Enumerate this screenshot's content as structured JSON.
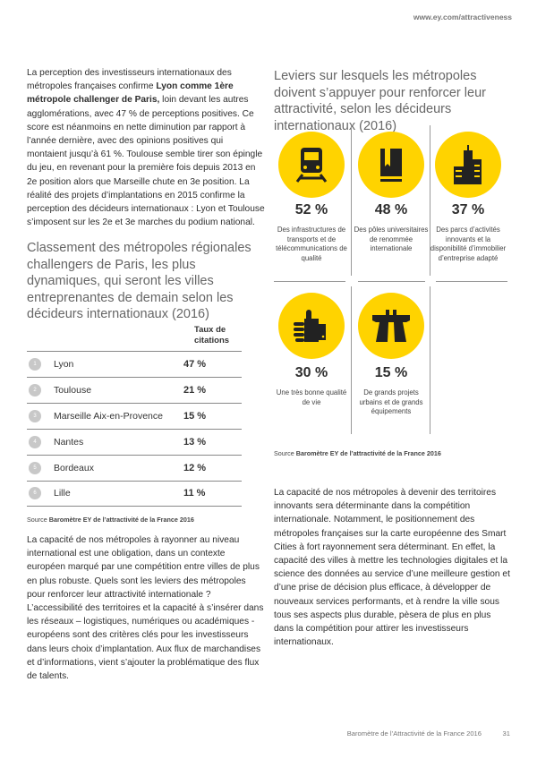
{
  "header": {
    "url": "www.ey.com/attractiveness"
  },
  "intro": {
    "p1a": "La perception des investisseurs internationaux des métropoles françaises confirme ",
    "p1b": "Lyon comme 1ère métropole challenger de Paris,",
    "p1c": " loin devant les autres agglomérations, avec 47 % de perceptions positives. Ce score est néanmoins en nette diminution par rapport à l’année dernière, avec des opinions positives qui montaient jusqu’à 61 %. Toulouse semble tirer son épingle du jeu, en revenant pour la première fois depuis 2013 en 2e position alors que Marseille chute en 3e position. La réalité des projets d’implantations en 2015 confirme la perception des décideurs internationaux : Lyon et Toulouse s’imposent sur les 2e et 3e marches du podium national."
  },
  "ranking": {
    "title": "Classement des métropoles régionales challengers de Paris, les plus dynamiques, qui seront les villes entreprenantes de demain selon les décideurs internationaux (2016)",
    "col_header": "Taux de citations",
    "rows": [
      {
        "rank": "1",
        "city": "Lyon",
        "value": "47 %"
      },
      {
        "rank": "2",
        "city": "Toulouse",
        "value": "21 %"
      },
      {
        "rank": "3",
        "city": "Marseille Aix-en-Provence",
        "value": "15 %"
      },
      {
        "rank": "4",
        "city": "Nantes",
        "value": "13 %"
      },
      {
        "rank": "5",
        "city": "Bordeaux",
        "value": "12 %"
      },
      {
        "rank": "6",
        "city": "Lille",
        "value": "11 %"
      }
    ],
    "source_label": "Source ",
    "source": "Baromètre EY de l’attractivité de la France 2016"
  },
  "left_text": "La capacité de nos métropoles à rayonner au niveau international est une obligation, dans un contexte européen marqué par une compétition entre villes de plus en plus robuste. Quels sont les leviers des métropoles pour renforcer leur attractivité internationale ? L’accessibilité des territoires et la capacité à s’insérer dans les réseaux – logistiques, numériques ou académiques - européens sont des critères clés pour les investisseurs dans leurs choix d’implantation. Aux flux de marchandises et d’informations, vient s’ajouter la problématique des flux de talents.",
  "levers": {
    "title": "Leviers sur lesquels les métropoles doivent s’appuyer pour renforcer leur attractivité, selon les décideurs internationaux (2016)",
    "items": [
      {
        "icon": "train-icon",
        "value": "52 %",
        "caption": "Des infrastructures de transports et de télécommunications de qualité"
      },
      {
        "icon": "book-icon",
        "value": "48 %",
        "caption": "Des pôles universitaires de renommée internationale"
      },
      {
        "icon": "buildings-icon",
        "value": "37 %",
        "caption": "Des parcs d’activités innovants et la disponibilité d’immobilier d’entreprise adapté"
      },
      {
        "icon": "thumbs-up-icon",
        "value": "30 %",
        "caption": "Une très bonne qualité de vie"
      },
      {
        "icon": "highway-icon",
        "value": "15 %",
        "caption": "De grands projets urbains et de grands équipements"
      }
    ],
    "source_label": "Source ",
    "source": "Baromètre EY de l’attractivité de la France 2016"
  },
  "right_text": "La capacité de nos métropoles à devenir des territoires innovants sera déterminante dans la compétition internationale. Notamment, le positionnement des métropoles françaises sur la carte européenne des Smart Cities à fort rayonnement sera déterminant. En effet, la capacité des villes à mettre les technologies digitales et la science des données au service d’une meilleure gestion et d’une prise de décision plus efficace, à développer de nouveaux services performants, et à rendre la ville sous tous ses aspects plus durable, pèsera de plus en plus dans la compétition pour attirer les investisseurs internationaux.",
  "footer": {
    "title": "Baromètre de l’Attractivité de la France 2016",
    "page": "31"
  },
  "colors": {
    "accent": "#ffd300",
    "text": "#2e2e2e"
  }
}
